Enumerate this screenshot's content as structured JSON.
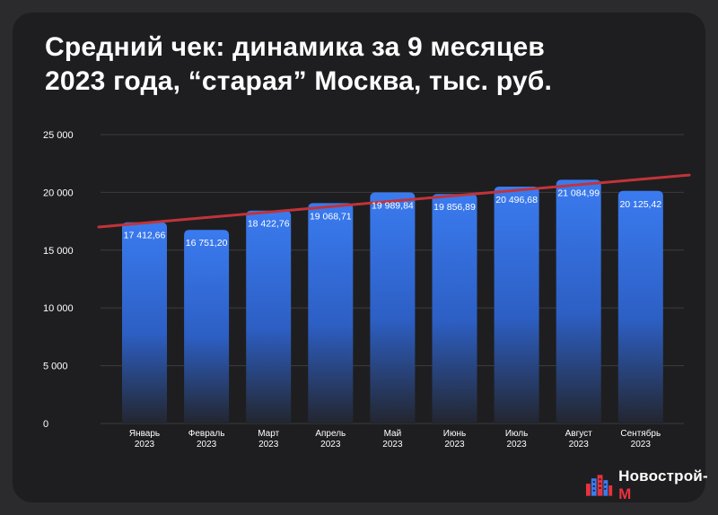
{
  "header": {
    "title_line1": "Средний чек: динамика за 9 месяцев",
    "title_line2": "2023 года, “старая” Москва, тыс. руб."
  },
  "logo": {
    "text_main": "Новострой-",
    "text_accent": "М",
    "icon": "building-logo-icon"
  },
  "colors": {
    "background": "#1e1e20",
    "bar_top": "#3a7bf0",
    "bar_bottom": "#23262f",
    "trend_line": "#c0343a",
    "grid": "#3c3c40",
    "text": "#ffffff"
  },
  "chart_data": {
    "type": "bar",
    "categories": [
      [
        "Январь",
        "2023"
      ],
      [
        "Февраль",
        "2023"
      ],
      [
        "Март",
        "2023"
      ],
      [
        "Апрель",
        "2023"
      ],
      [
        "Май",
        "2023"
      ],
      [
        "Июнь",
        "2023"
      ],
      [
        "Июль",
        "2023"
      ],
      [
        "Август",
        "2023"
      ],
      [
        "Сентябрь",
        "2023"
      ]
    ],
    "values": [
      17412.66,
      16751.2,
      18422.76,
      19068.71,
      19989.84,
      19856.89,
      20496.68,
      21084.99,
      20125.42
    ],
    "value_labels": [
      "17 412,66",
      "16 751,20",
      "18 422,76",
      "19 068,71",
      "19 989,84",
      "19 856,89",
      "20 496,68",
      "21 084,99",
      "20 125,42"
    ],
    "ylim": [
      0,
      25000
    ],
    "yticks": [
      0,
      5000,
      10000,
      15000,
      20000,
      25000
    ],
    "ytick_labels": [
      "0",
      "5 000",
      "10 000",
      "15 000",
      "20 000",
      "25 000"
    ],
    "trend_line": {
      "start": 17000,
      "end": 21500
    },
    "grid": true,
    "legend": "none"
  }
}
